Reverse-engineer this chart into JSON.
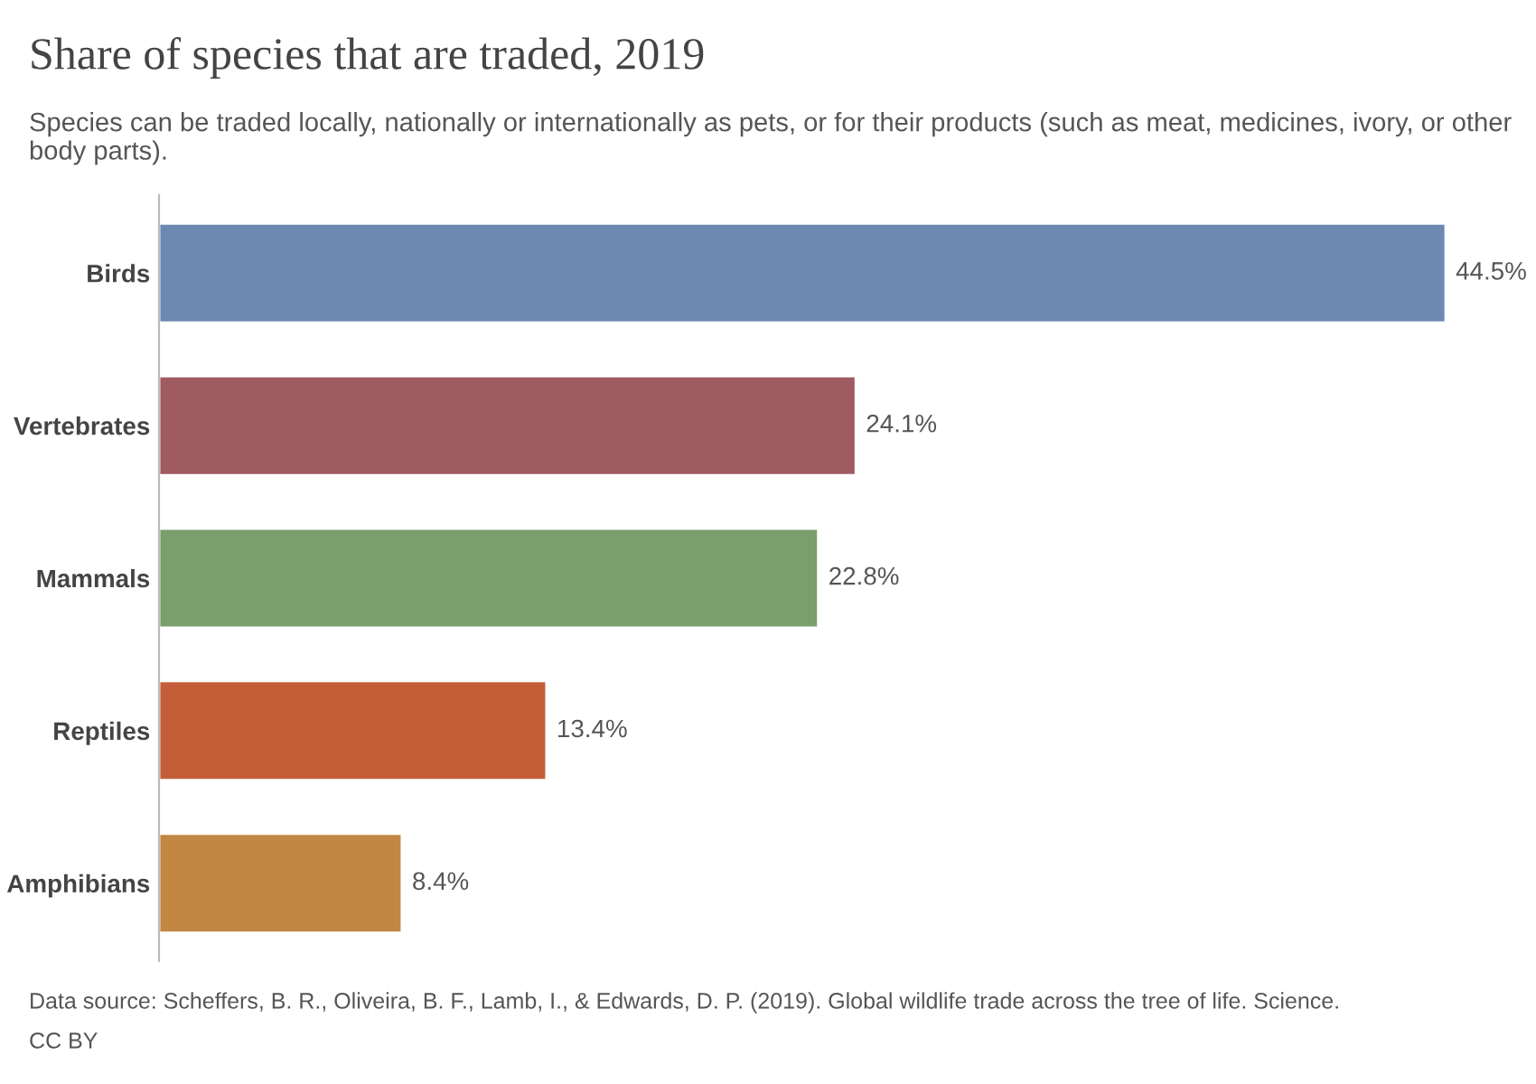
{
  "chart_data": {
    "type": "bar",
    "orientation": "horizontal",
    "title": "Share of species that are traded, 2019",
    "subtitle": "Species can be traded locally, nationally or internationally as pets, or for their products (such as meat, medicines, ivory, or other body parts).",
    "categories": [
      "Birds",
      "Vertebrates",
      "Mammals",
      "Reptiles",
      "Amphibians"
    ],
    "values": [
      44.5,
      24.1,
      22.8,
      13.4,
      8.4
    ],
    "colors": [
      "#6d89b1",
      "#a05a62",
      "#7a9e6c",
      "#c35e39",
      "#c38744"
    ],
    "value_labels": [
      "44.5%",
      "24.1%",
      "22.8%",
      "13.4%",
      "8.4%"
    ],
    "annotations": [
      "Data source: Scheffers, B. R., Oliveira, B. F., Lamb, I., & Edwards, D. P. (2019). Global wildlife trade across the tree of life. Science.",
      "CC BY"
    ],
    "grid": false,
    "legend": false
  }
}
